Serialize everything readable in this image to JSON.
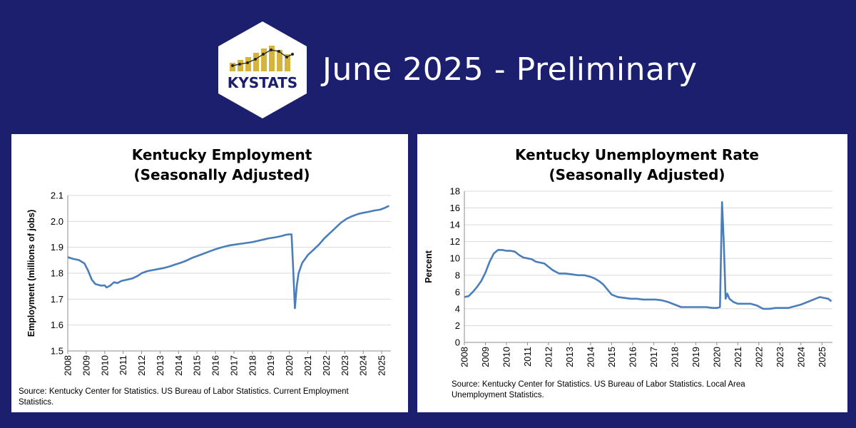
{
  "header": {
    "logo_text": "KYSTATS",
    "headline": "June 2025 - Preliminary"
  },
  "colors": {
    "background": "#1c1f6e",
    "line": "#4a7ebb",
    "logo_bars": "#d4b43a",
    "logo_text": "#1c1f6e"
  },
  "chart_data": [
    {
      "type": "line",
      "title_lines": [
        "Kentucky Employment",
        "(Seasonally Adjusted)"
      ],
      "xlabel": "",
      "ylabel": "Employment (millions of jobs)",
      "ylim": [
        1.5,
        2.1
      ],
      "yticks": [
        "1.5",
        "1.6",
        "1.7",
        "1.8",
        "1.9",
        "2.0",
        "2.1"
      ],
      "xlim": [
        2008.0,
        2025.5
      ],
      "xticks": [
        "2008",
        "2009",
        "2010",
        "2011",
        "2012",
        "2013",
        "2014",
        "2015",
        "2016",
        "2017",
        "2018",
        "2019",
        "2020",
        "2021",
        "2022",
        "2023",
        "2024",
        "2025"
      ],
      "grid": "horizontal",
      "legend": "none",
      "series": [
        {
          "x": [
            2008.0,
            2008.3,
            2008.6,
            2008.9,
            2009.1,
            2009.3,
            2009.5,
            2009.8,
            2010.0,
            2010.1,
            2010.3,
            2010.5,
            2010.7,
            2010.9,
            2011.2,
            2011.5,
            2011.8,
            2012.0,
            2012.3,
            2012.6,
            2012.9,
            2013.2,
            2013.5,
            2013.8,
            2014.1,
            2014.4,
            2014.7,
            2015.0,
            2015.3,
            2015.6,
            2015.9,
            2016.2,
            2016.5,
            2016.8,
            2017.1,
            2017.4,
            2017.7,
            2018.0,
            2018.3,
            2018.6,
            2018.9,
            2019.2,
            2019.5,
            2019.8,
            2020.0,
            2020.12,
            2020.2,
            2020.3,
            2020.4,
            2020.5,
            2020.7,
            2021.0,
            2021.3,
            2021.6,
            2021.9,
            2022.2,
            2022.5,
            2022.8,
            2023.1,
            2023.4,
            2023.7,
            2024.0,
            2024.3,
            2024.6,
            2024.9,
            2025.2,
            2025.4
          ],
          "values": [
            1.862,
            1.855,
            1.851,
            1.838,
            1.81,
            1.775,
            1.758,
            1.752,
            1.753,
            1.745,
            1.752,
            1.765,
            1.762,
            1.77,
            1.775,
            1.78,
            1.79,
            1.8,
            1.808,
            1.812,
            1.816,
            1.82,
            1.826,
            1.833,
            1.84,
            1.848,
            1.858,
            1.866,
            1.874,
            1.882,
            1.89,
            1.897,
            1.903,
            1.908,
            1.911,
            1.914,
            1.917,
            1.92,
            1.925,
            1.93,
            1.935,
            1.938,
            1.942,
            1.948,
            1.95,
            1.95,
            1.83,
            1.665,
            1.75,
            1.8,
            1.84,
            1.87,
            1.89,
            1.91,
            1.935,
            1.955,
            1.975,
            1.995,
            2.01,
            2.02,
            2.028,
            2.033,
            2.037,
            2.042,
            2.045,
            2.053,
            2.06
          ]
        }
      ],
      "source_lines": [
        "Source: Kentucky Center for Statistics. US Bureau of Labor Statistics. Current Employment",
        "Statistics."
      ]
    },
    {
      "type": "line",
      "title_lines": [
        "Kentucky Unemployment Rate",
        "(Seasonally Adjusted)"
      ],
      "xlabel": "",
      "ylabel": "Percent",
      "ylim": [
        0,
        18
      ],
      "yticks": [
        "0",
        "2",
        "4",
        "6",
        "8",
        "10",
        "12",
        "14",
        "16",
        "18"
      ],
      "xlim": [
        2008.0,
        2025.5
      ],
      "xticks": [
        "2008",
        "2009",
        "2010",
        "2011",
        "2012",
        "2013",
        "2014",
        "2015",
        "2016",
        "2017",
        "2018",
        "2019",
        "2020",
        "2021",
        "2022",
        "2023",
        "2024",
        "2025"
      ],
      "grid": "horizontal",
      "legend": "none",
      "series": [
        {
          "x": [
            2008.0,
            2008.2,
            2008.4,
            2008.6,
            2008.8,
            2009.0,
            2009.2,
            2009.4,
            2009.6,
            2009.8,
            2010.0,
            2010.2,
            2010.4,
            2010.6,
            2010.8,
            2011.0,
            2011.2,
            2011.4,
            2011.6,
            2011.8,
            2012.0,
            2012.2,
            2012.5,
            2012.8,
            2013.1,
            2013.4,
            2013.7,
            2014.0,
            2014.2,
            2014.4,
            2014.6,
            2014.8,
            2015.0,
            2015.3,
            2015.6,
            2015.9,
            2016.2,
            2016.5,
            2016.8,
            2017.1,
            2017.4,
            2017.7,
            2018.0,
            2018.3,
            2018.6,
            2018.9,
            2019.2,
            2019.5,
            2019.8,
            2020.0,
            2020.15,
            2020.25,
            2020.33,
            2020.42,
            2020.5,
            2020.6,
            2020.8,
            2021.0,
            2021.3,
            2021.6,
            2021.9,
            2022.2,
            2022.5,
            2022.8,
            2023.1,
            2023.4,
            2023.7,
            2024.0,
            2024.3,
            2024.6,
            2024.9,
            2025.1,
            2025.3,
            2025.45
          ],
          "values": [
            5.4,
            5.5,
            6.0,
            6.6,
            7.3,
            8.3,
            9.6,
            10.6,
            11.0,
            11.0,
            10.9,
            10.9,
            10.8,
            10.4,
            10.1,
            10.0,
            9.9,
            9.6,
            9.5,
            9.4,
            9.0,
            8.6,
            8.2,
            8.2,
            8.1,
            8.0,
            8.0,
            7.8,
            7.6,
            7.3,
            6.9,
            6.3,
            5.7,
            5.4,
            5.3,
            5.2,
            5.2,
            5.1,
            5.1,
            5.1,
            5.0,
            4.8,
            4.5,
            4.2,
            4.2,
            4.2,
            4.2,
            4.2,
            4.1,
            4.1,
            4.2,
            16.7,
            12.0,
            5.2,
            5.8,
            5.2,
            4.8,
            4.6,
            4.6,
            4.6,
            4.4,
            4.0,
            4.0,
            4.1,
            4.1,
            4.1,
            4.3,
            4.5,
            4.8,
            5.1,
            5.4,
            5.3,
            5.2,
            4.9
          ]
        }
      ],
      "source_lines": [
        "Source: Kentucky Center for Statistics. US Bureau of Labor Statistics. Local Area",
        "Unemployment Statistics."
      ]
    }
  ]
}
